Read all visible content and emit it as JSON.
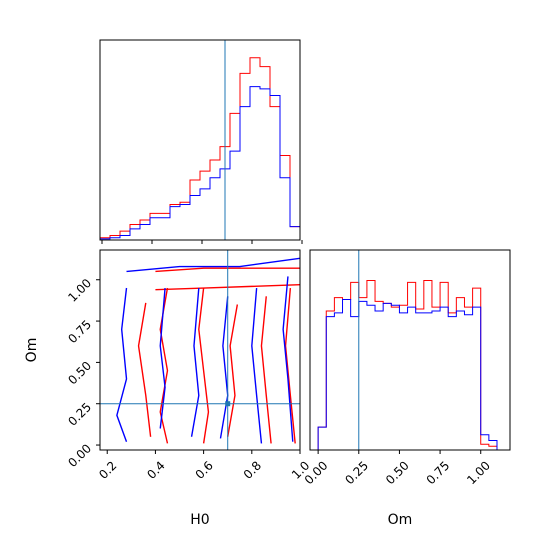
{
  "chart_data": [
    {
      "type": "histogram",
      "panel": "H0 marginal",
      "xlim": [
        0.2,
        1.0
      ],
      "truth": 0.7,
      "bin_edges": [
        0.2,
        0.24,
        0.28,
        0.32,
        0.36,
        0.4,
        0.44,
        0.48,
        0.52,
        0.56,
        0.6,
        0.64,
        0.68,
        0.72,
        0.76,
        0.8,
        0.84,
        0.88,
        0.92,
        0.96,
        1.0
      ],
      "series": [
        {
          "color": "#ff0000",
          "values": [
            0.01,
            0.02,
            0.04,
            0.07,
            0.09,
            0.12,
            0.12,
            0.16,
            0.17,
            0.27,
            0.31,
            0.36,
            0.42,
            0.57,
            0.75,
            0.82,
            0.78,
            0.6,
            0.38,
            0.06
          ]
        },
        {
          "color": "#0000ff",
          "values": [
            0.005,
            0.01,
            0.02,
            0.05,
            0.07,
            0.1,
            0.1,
            0.15,
            0.16,
            0.2,
            0.23,
            0.28,
            0.32,
            0.4,
            0.6,
            0.69,
            0.68,
            0.65,
            0.28,
            0.06
          ]
        }
      ]
    },
    {
      "type": "contour",
      "panel": "H0 vs Om joint",
      "xlabel": "H0",
      "ylabel": "Om",
      "xlim": [
        0.17,
        1.0
      ],
      "ylim": [
        -0.03,
        1.18
      ],
      "xticks": [
        "0.2",
        "0.4",
        "0.6",
        "0.8",
        "1.0"
      ],
      "yticks": [
        "0.00",
        "0.25",
        "0.50",
        "0.75",
        "1.00"
      ],
      "truth": {
        "x": 0.7,
        "y": 0.25
      },
      "series": [
        {
          "color": "#ff0000",
          "contours": [
            [
              [
                0.4,
                1.05
              ],
              [
                0.6,
                1.07
              ],
              [
                0.8,
                1.07
              ],
              [
                1.0,
                1.07
              ]
            ],
            [
              [
                0.4,
                0.94
              ],
              [
                0.6,
                0.95
              ],
              [
                0.8,
                0.96
              ],
              [
                1.0,
                0.97
              ]
            ],
            [
              [
                0.36,
                0.86
              ],
              [
                0.33,
                0.6
              ],
              [
                0.36,
                0.3
              ],
              [
                0.38,
                0.05
              ]
            ],
            [
              [
                0.45,
                0.95
              ],
              [
                0.42,
                0.7
              ],
              [
                0.45,
                0.45
              ],
              [
                0.42,
                0.2
              ],
              [
                0.45,
                0.01
              ]
            ],
            [
              [
                0.6,
                0.95
              ],
              [
                0.58,
                0.7
              ],
              [
                0.6,
                0.45
              ],
              [
                0.62,
                0.2
              ],
              [
                0.6,
                0.01
              ]
            ],
            [
              [
                0.74,
                0.85
              ],
              [
                0.71,
                0.6
              ],
              [
                0.73,
                0.3
              ],
              [
                0.7,
                0.05
              ]
            ],
            [
              [
                0.86,
                0.9
              ],
              [
                0.84,
                0.6
              ],
              [
                0.86,
                0.3
              ],
              [
                0.88,
                0.01
              ]
            ],
            [
              [
                0.96,
                0.95
              ],
              [
                0.94,
                0.6
              ],
              [
                0.96,
                0.3
              ],
              [
                0.98,
                0.01
              ]
            ]
          ]
        },
        {
          "color": "#0000ff",
          "contours": [
            [
              [
                0.28,
                1.05
              ],
              [
                0.5,
                1.08
              ],
              [
                0.75,
                1.08
              ],
              [
                1.0,
                1.13
              ]
            ],
            [
              [
                0.28,
                0.95
              ],
              [
                0.26,
                0.7
              ],
              [
                0.28,
                0.4
              ],
              [
                0.24,
                0.18
              ],
              [
                0.28,
                0.02
              ]
            ],
            [
              [
                0.44,
                0.95
              ],
              [
                0.42,
                0.6
              ],
              [
                0.44,
                0.35
              ],
              [
                0.42,
                0.1
              ]
            ],
            [
              [
                0.58,
                0.95
              ],
              [
                0.56,
                0.6
              ],
              [
                0.58,
                0.3
              ],
              [
                0.55,
                0.05
              ]
            ],
            [
              [
                0.7,
                0.9
              ],
              [
                0.68,
                0.6
              ],
              [
                0.7,
                0.3
              ],
              [
                0.67,
                0.04
              ]
            ],
            [
              [
                0.82,
                0.95
              ],
              [
                0.8,
                0.6
              ],
              [
                0.82,
                0.3
              ],
              [
                0.84,
                0.01
              ]
            ],
            [
              [
                0.95,
                1.02
              ],
              [
                0.93,
                0.7
              ],
              [
                0.95,
                0.4
              ],
              [
                0.97,
                0.02
              ]
            ]
          ]
        }
      ]
    },
    {
      "type": "histogram",
      "panel": "Om marginal",
      "xlabel": "Om",
      "xlim": [
        -0.05,
        1.18
      ],
      "xticks": [
        "0.00",
        "0.25",
        "0.50",
        "0.75",
        "1.00"
      ],
      "truth": 0.25,
      "bin_edges": [
        0.0,
        0.05,
        0.1,
        0.15,
        0.2,
        0.25,
        0.3,
        0.35,
        0.4,
        0.45,
        0.5,
        0.55,
        0.6,
        0.65,
        0.7,
        0.75,
        0.8,
        0.85,
        0.9,
        0.95,
        1.0,
        1.05,
        1.1
      ],
      "series": [
        {
          "color": "#ff0000",
          "values": [
            0.12,
            0.73,
            0.8,
            0.79,
            0.88,
            0.8,
            0.89,
            0.78,
            0.77,
            0.75,
            0.76,
            0.88,
            0.74,
            0.89,
            0.75,
            0.88,
            0.72,
            0.8,
            0.75,
            0.85,
            0.03,
            0.02
          ]
        },
        {
          "color": "#0000ff",
          "values": [
            0.12,
            0.7,
            0.72,
            0.79,
            0.7,
            0.78,
            0.76,
            0.73,
            0.77,
            0.76,
            0.72,
            0.75,
            0.72,
            0.72,
            0.73,
            0.75,
            0.7,
            0.73,
            0.71,
            0.75,
            0.08,
            0.05
          ]
        }
      ]
    }
  ]
}
